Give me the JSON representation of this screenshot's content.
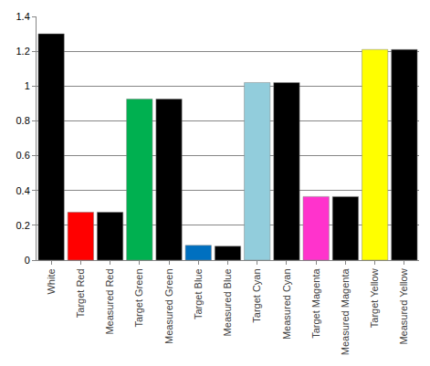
{
  "chart_data": {
    "type": "bar",
    "categories": [
      "White",
      "Target Red",
      "Measured Red",
      "Target Green",
      "Measured Green",
      "Target Blue",
      "Measured Blue",
      "Target Cyan",
      "Measured Cyan",
      "Target Magenta",
      "Measured Magenta",
      "Target Yellow",
      "Measured Yellow"
    ],
    "values": [
      1.3,
      0.275,
      0.275,
      0.925,
      0.925,
      0.085,
      0.08,
      1.02,
      1.02,
      0.365,
      0.365,
      1.21,
      1.21
    ],
    "colors": [
      "#000000",
      "#ff0000",
      "#000000",
      "#00b050",
      "#000000",
      "#0070c0",
      "#000000",
      "#92cddc",
      "#000000",
      "#ff33cc",
      "#000000",
      "#ffff00",
      "#000000"
    ],
    "ylim": [
      0,
      1.4
    ],
    "yticks": [
      0,
      0.2,
      0.4,
      0.6,
      0.8,
      1,
      1.2,
      1.4
    ],
    "grid": true
  }
}
